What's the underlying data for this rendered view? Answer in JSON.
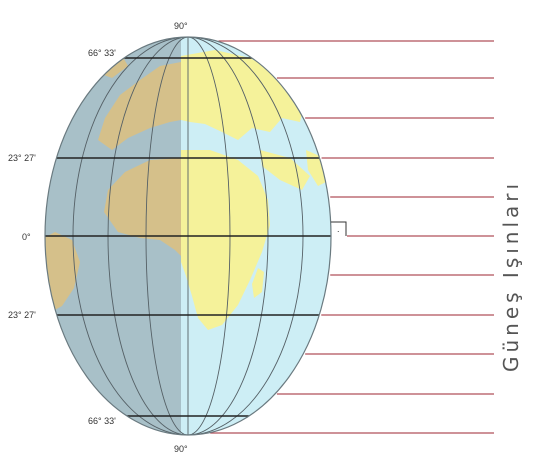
{
  "labels": {
    "north_pole": "90°",
    "south_pole": "90°",
    "arctic_circle": "66° 33'",
    "tropic_cancer": "23° 27'",
    "equator": "0°",
    "tropic_capricorn": "23° 27'",
    "antarctic_circle": "66° 33'",
    "sun_rays": "Güneş Işınları",
    "right_angle_mark": "."
  },
  "colors": {
    "ocean_night": "#a8c0c8",
    "ocean_day": "#cdeef5",
    "land_night": "#d5c08a",
    "land_day": "#f5f29a",
    "ray": "#b0505a",
    "parallel": "#222222",
    "meridian": "#556066"
  }
}
